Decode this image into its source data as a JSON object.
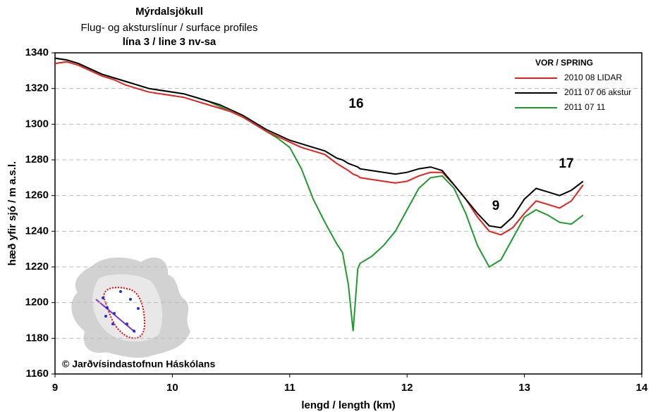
{
  "chart_data": {
    "type": "line",
    "title": "Mýrdalsjökull",
    "subtitle": "Flug- og aksturslínur / surface profiles",
    "subtitle2": "lína 3 / line 3   nv-sa",
    "x_label": "lengd / length (km)",
    "y_label": "hæð yfir sjó / m a.s.l.",
    "legend_title": "VOR / SPRING",
    "annotations": [
      "16",
      "9",
      "17",
      "© Jarðvísindastofnun Háskólans"
    ],
    "x": [
      9.0,
      9.1,
      9.2,
      9.3,
      9.4,
      9.5,
      9.6,
      9.7,
      9.8,
      9.9,
      10.0,
      10.1,
      10.2,
      10.3,
      10.4,
      10.5,
      10.6,
      10.7,
      10.8,
      10.9,
      11.0,
      11.1,
      11.2,
      11.3,
      11.4,
      11.45,
      11.5,
      11.54,
      11.58,
      11.6,
      11.7,
      11.8,
      11.9,
      12.0,
      12.1,
      12.2,
      12.3,
      12.4,
      12.5,
      12.6,
      12.7,
      12.8,
      12.9,
      13.0,
      13.1,
      13.2,
      13.3,
      13.4,
      13.5
    ],
    "series": [
      {
        "name": "2010 08 LIDAR",
        "color": "#e8201c",
        "values": [
          1334,
          1335,
          1333,
          1330,
          1327,
          1325,
          1322,
          1320,
          1318,
          1317,
          1316,
          1315,
          1313,
          1311,
          1309,
          1307,
          1304,
          1300,
          1296,
          1293,
          1290,
          1287,
          1285,
          1283,
          1278,
          1276,
          1274,
          1272,
          1271,
          1270,
          1269,
          1268,
          1267,
          1268,
          1271,
          1273,
          1273,
          1266,
          1258,
          1248,
          1240,
          1238,
          1242,
          1250,
          1257,
          1255,
          1253,
          1257,
          1266
        ]
      },
      {
        "name": "2011 07 06 akstur",
        "color": "#000000",
        "values": [
          1337,
          1336,
          1334,
          1331,
          1328,
          1326,
          1324,
          1322,
          1320,
          1319,
          1318,
          1317,
          1315,
          1313,
          1311,
          1308,
          1305,
          1301,
          1297,
          1294,
          1291,
          1289,
          1287,
          1285,
          1281,
          1280,
          1278,
          1277,
          1276,
          1275,
          1274,
          1273,
          1272,
          1273,
          1275,
          1276,
          1274,
          1266,
          1258,
          1250,
          1243,
          1242,
          1248,
          1258,
          1264,
          1262,
          1260,
          1263,
          1268
        ]
      },
      {
        "name": "2011 07 11",
        "color": "#1f9a2e",
        "values": [
          1337,
          1336,
          1334,
          1331,
          1328,
          1326,
          1324,
          1322,
          1320,
          1319,
          1318,
          1317,
          1315,
          1313,
          1310,
          1307,
          1304,
          1300,
          1296,
          1292,
          1287,
          1275,
          1258,
          1245,
          1233,
          1228,
          1210,
          1184,
          1219,
          1222,
          1226,
          1232,
          1240,
          1252,
          1264,
          1270,
          1271,
          1264,
          1250,
          1232,
          1220,
          1224,
          1236,
          1248,
          1252,
          1249,
          1245,
          1244,
          1249
        ]
      }
    ],
    "xlim": [
      9,
      14
    ],
    "xticks": [
      9,
      10,
      11,
      12,
      13,
      14
    ],
    "ylim": [
      1160,
      1340
    ],
    "yticks": [
      1160,
      1180,
      1200,
      1220,
      1240,
      1260,
      1280,
      1300,
      1320,
      1340
    ],
    "grid": true,
    "legend": "upper right"
  }
}
